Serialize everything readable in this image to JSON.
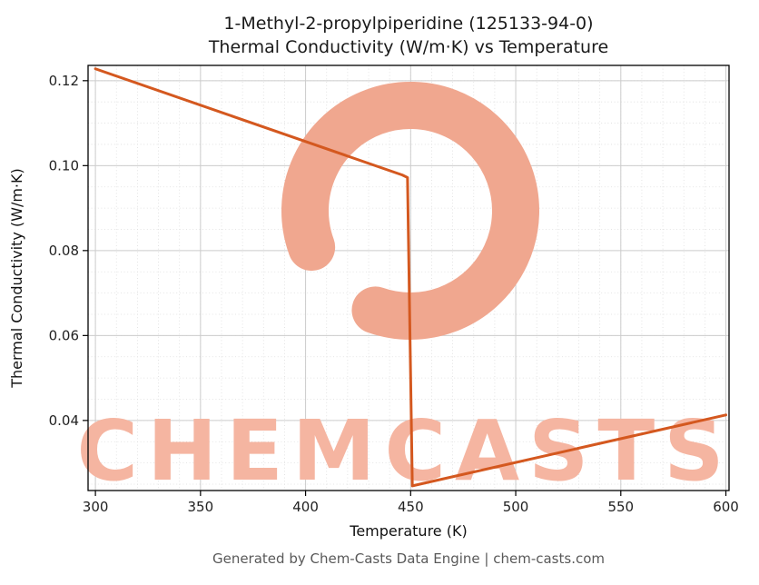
{
  "title": {
    "line1": "1-Methyl-2-propylpiperidine (125133-94-0)",
    "line2": "Thermal Conductivity (W/m·K) vs Temperature"
  },
  "footer": {
    "credit": "Generated by Chem-Casts Data Engine | chem-casts.com"
  },
  "watermark": {
    "text": "CHEMCASTS",
    "color": "#f5b5a1",
    "ring_color": "#f0a78f"
  },
  "chart_data": {
    "type": "line",
    "title": "1-Methyl-2-propylpiperidine (125133-94-0) Thermal Conductivity (W/m·K) vs Temperature",
    "xlabel": "Temperature (K)",
    "ylabel": "Thermal Conductivity (W/m·K)",
    "xlim": [
      296.5,
      601.5
    ],
    "ylim": [
      0.0235,
      0.1236
    ],
    "x_ticks": [
      300,
      350,
      400,
      450,
      500,
      550,
      600
    ],
    "x_tick_labels": [
      "300",
      "350",
      "400",
      "450",
      "500",
      "550",
      "600"
    ],
    "y_ticks": [
      0.04,
      0.06,
      0.08,
      0.1,
      0.12
    ],
    "y_tick_labels": [
      "0.04",
      "0.06",
      "0.08",
      "0.10",
      "0.12"
    ],
    "x_minor_step": 10,
    "y_minor_step": 0.005,
    "grid": true,
    "legend": "none",
    "line_color": "#d4581f",
    "line_width": 3,
    "series": [
      {
        "name": "Thermal Conductivity",
        "x": [
          300,
          446,
          448.5,
          450.8,
          600
        ],
        "y": [
          0.1228,
          0.0978,
          0.0972,
          0.0246,
          0.0413
        ]
      }
    ]
  }
}
